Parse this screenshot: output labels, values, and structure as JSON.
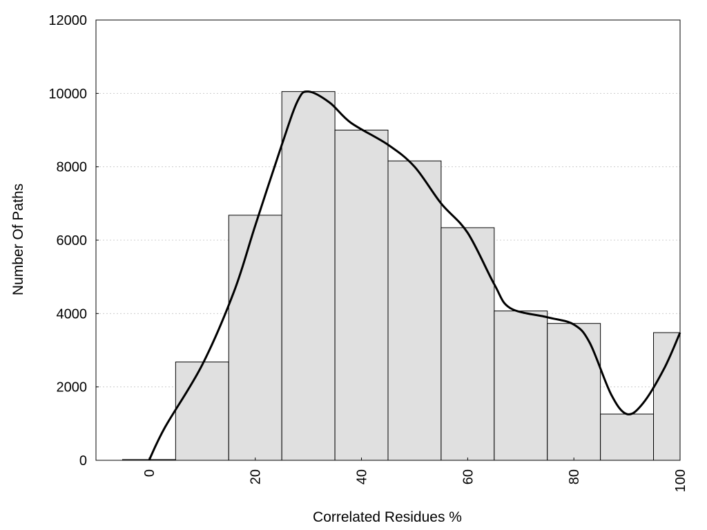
{
  "chart_data": {
    "type": "bar",
    "xlabel": "Correlated Residues %",
    "ylabel": "Number Of Paths",
    "xlim": [
      -10,
      100
    ],
    "ylim": [
      0,
      12000
    ],
    "x_ticks": [
      0,
      20,
      40,
      60,
      80,
      100
    ],
    "y_ticks": [
      0,
      2000,
      4000,
      6000,
      8000,
      10000,
      12000
    ],
    "grid": "horizontal dotted",
    "legend": "none",
    "bin_width": 10,
    "bars": [
      {
        "x": 0,
        "value": 20
      },
      {
        "x": 10,
        "value": 2680
      },
      {
        "x": 20,
        "value": 6680
      },
      {
        "x": 30,
        "value": 10050
      },
      {
        "x": 40,
        "value": 9000
      },
      {
        "x": 50,
        "value": 8160
      },
      {
        "x": 60,
        "value": 6340
      },
      {
        "x": 70,
        "value": 4070
      },
      {
        "x": 80,
        "value": 3730
      },
      {
        "x": 90,
        "value": 1260
      },
      {
        "x": 100,
        "value": 3480
      }
    ],
    "curve": [
      [
        0,
        0
      ],
      [
        3,
        900
      ],
      [
        10,
        2600
      ],
      [
        16,
        4600
      ],
      [
        20,
        6400
      ],
      [
        25,
        8600
      ],
      [
        28,
        9800
      ],
      [
        30,
        10050
      ],
      [
        34,
        9750
      ],
      [
        38,
        9200
      ],
      [
        45,
        8600
      ],
      [
        50,
        8000
      ],
      [
        55,
        7000
      ],
      [
        60,
        6200
      ],
      [
        65,
        4800
      ],
      [
        68,
        4150
      ],
      [
        75,
        3900
      ],
      [
        80,
        3700
      ],
      [
        83,
        3200
      ],
      [
        87,
        1800
      ],
      [
        90,
        1260
      ],
      [
        93,
        1550
      ],
      [
        97,
        2500
      ],
      [
        100,
        3480
      ]
    ],
    "colors": {
      "bar_fill": "#e0e0e0",
      "bar_edge": "#000000",
      "curve": "#000000",
      "grid": "#cccccc"
    }
  }
}
